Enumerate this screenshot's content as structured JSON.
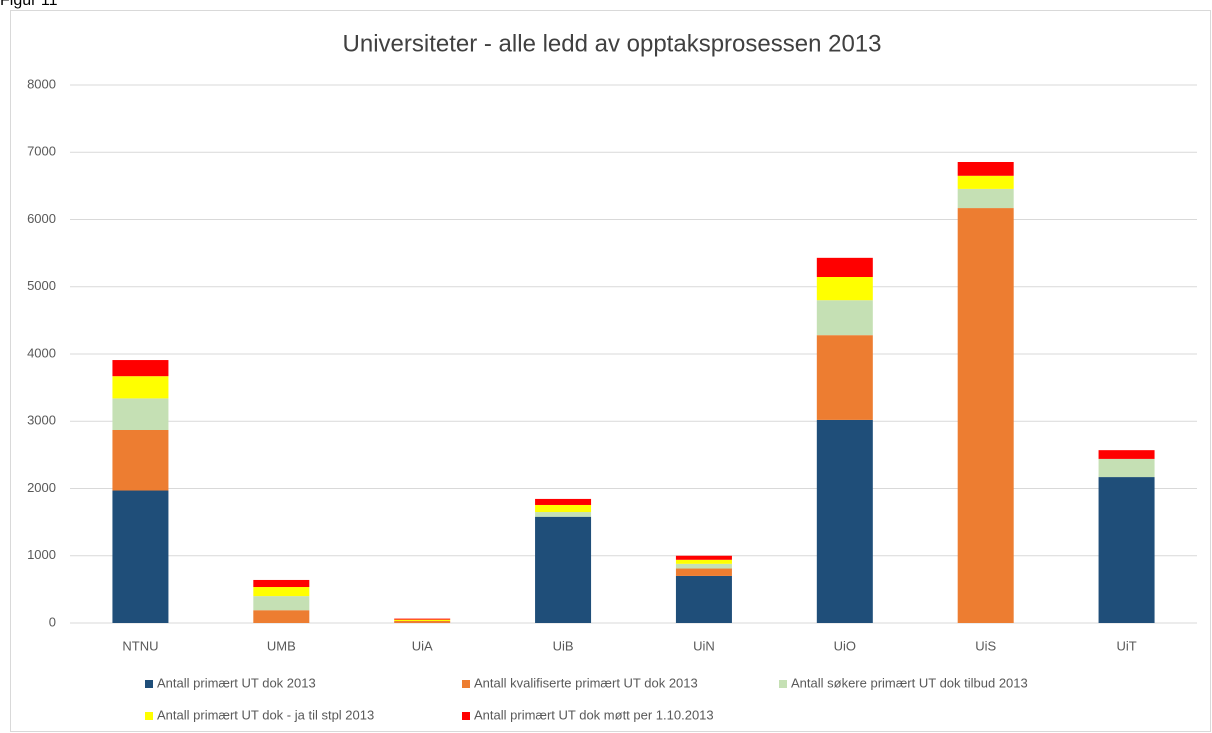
{
  "caption": "Figur 11",
  "chart_data": {
    "type": "stacked_bar",
    "title": "Universiteter - alle ledd av opptaksprosessen 2013",
    "categories": [
      "NTNU",
      "UMB",
      "UiA",
      "UiB",
      "UiN",
      "UiO",
      "UiS",
      "UiT"
    ],
    "series": [
      {
        "name": "Antall primært UT dok 2013",
        "color": "#1f4e79",
        "values": [
          1970,
          0,
          0,
          1580,
          700,
          3020,
          0,
          2170
        ]
      },
      {
        "name": "Antall kvalifiserte primært UT dok 2013",
        "color": "#ed7d31",
        "values": [
          900,
          190,
          30,
          0,
          110,
          1260,
          6170,
          0
        ]
      },
      {
        "name": "Antall søkere primært UT dok tilbud 2013",
        "color": "#c5e0b4",
        "values": [
          470,
          210,
          0,
          70,
          70,
          520,
          285,
          270
        ]
      },
      {
        "name": "Antall primært UT dok - ja til stpl 2013",
        "color": "#ffff00",
        "values": [
          330,
          135,
          20,
          105,
          60,
          345,
          195,
          0
        ]
      },
      {
        "name": "Antall primært UT dok møtt per 1.10.2013",
        "color": "#ff0000",
        "values": [
          240,
          105,
          15,
          90,
          60,
          285,
          205,
          130
        ]
      }
    ],
    "ylim": [
      0,
      8000
    ],
    "yticks": [
      0,
      1000,
      2000,
      3000,
      4000,
      5000,
      6000,
      7000,
      8000
    ],
    "grid": true,
    "legend": "bottom"
  }
}
